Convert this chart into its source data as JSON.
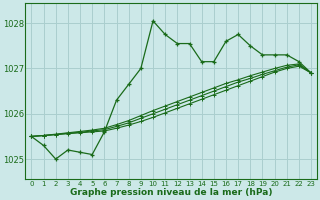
{
  "title": "Graphe pression niveau de la mer (hPa)",
  "bg_color": "#cce8e8",
  "grid_color": "#aacece",
  "line_color": "#1a6b1a",
  "x_labels": [
    "0",
    "1",
    "2",
    "3",
    "4",
    "5",
    "6",
    "7",
    "8",
    "9",
    "10",
    "11",
    "12",
    "13",
    "14",
    "15",
    "16",
    "17",
    "18",
    "19",
    "20",
    "21",
    "22",
    "23"
  ],
  "ylim": [
    1024.55,
    1028.45
  ],
  "yticks": [
    1025,
    1026,
    1027,
    1028
  ],
  "series_jagged": [
    1025.5,
    1025.3,
    1025.0,
    1025.2,
    1025.15,
    1025.1,
    1025.6,
    1026.3,
    1026.65,
    1027.0,
    1028.05,
    1027.75,
    1027.55,
    1027.55,
    1027.15,
    1027.15,
    1027.6,
    1027.75,
    1027.5,
    1027.3,
    1027.3,
    1027.3,
    1027.15,
    1026.9
  ],
  "series_smooth": [
    [
      1025.5,
      1025.52,
      1025.54,
      1025.56,
      1025.58,
      1025.6,
      1025.62,
      1025.68,
      1025.75,
      1025.83,
      1025.92,
      1026.02,
      1026.12,
      1026.22,
      1026.32,
      1026.42,
      1026.52,
      1026.62,
      1026.72,
      1026.82,
      1026.92,
      1027.0,
      1027.05,
      1026.9
    ],
    [
      1025.5,
      1025.52,
      1025.54,
      1025.57,
      1025.59,
      1025.62,
      1025.65,
      1025.72,
      1025.8,
      1025.9,
      1026.0,
      1026.1,
      1026.2,
      1026.3,
      1026.4,
      1026.5,
      1026.6,
      1026.7,
      1026.78,
      1026.87,
      1026.95,
      1027.03,
      1027.08,
      1026.9
    ],
    [
      1025.5,
      1025.52,
      1025.55,
      1025.58,
      1025.61,
      1025.64,
      1025.68,
      1025.76,
      1025.85,
      1025.96,
      1026.07,
      1026.17,
      1026.27,
      1026.37,
      1026.47,
      1026.57,
      1026.67,
      1026.75,
      1026.84,
      1026.92,
      1027.0,
      1027.07,
      1027.1,
      1026.9
    ]
  ]
}
